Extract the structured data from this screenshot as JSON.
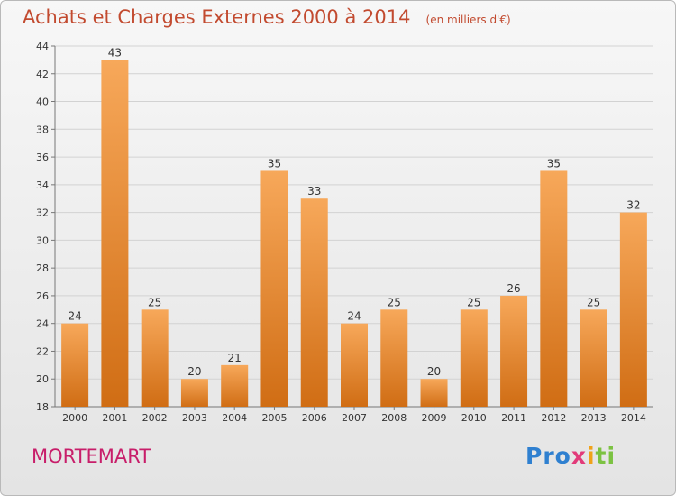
{
  "header": {
    "title": "Achats et Charges Externes 2000 à 2014",
    "unit": "(en milliers d'€)"
  },
  "footer": {
    "place": "MORTEMART",
    "logo": "Proxiti"
  },
  "colors": {
    "bar_light": "#f7a85a",
    "bar_dark": "#d06d14",
    "title": "#c24a2f",
    "place": "#c81e6a"
  },
  "chart_data": {
    "type": "bar",
    "title": "Achats et Charges Externes 2000 à 2014",
    "subtitle": "(en milliers d'€)",
    "categories": [
      "2000",
      "2001",
      "2002",
      "2003",
      "2004",
      "2005",
      "2006",
      "2007",
      "2008",
      "2009",
      "2010",
      "2011",
      "2012",
      "2013",
      "2014"
    ],
    "values": [
      24,
      43,
      25,
      20,
      21,
      35,
      33,
      24,
      25,
      20,
      25,
      26,
      35,
      25,
      32
    ],
    "ylim": [
      18,
      44
    ],
    "yticks": [
      18,
      20,
      22,
      24,
      26,
      28,
      30,
      32,
      34,
      36,
      38,
      40,
      42,
      44
    ],
    "grid": true,
    "data_labels": true
  }
}
